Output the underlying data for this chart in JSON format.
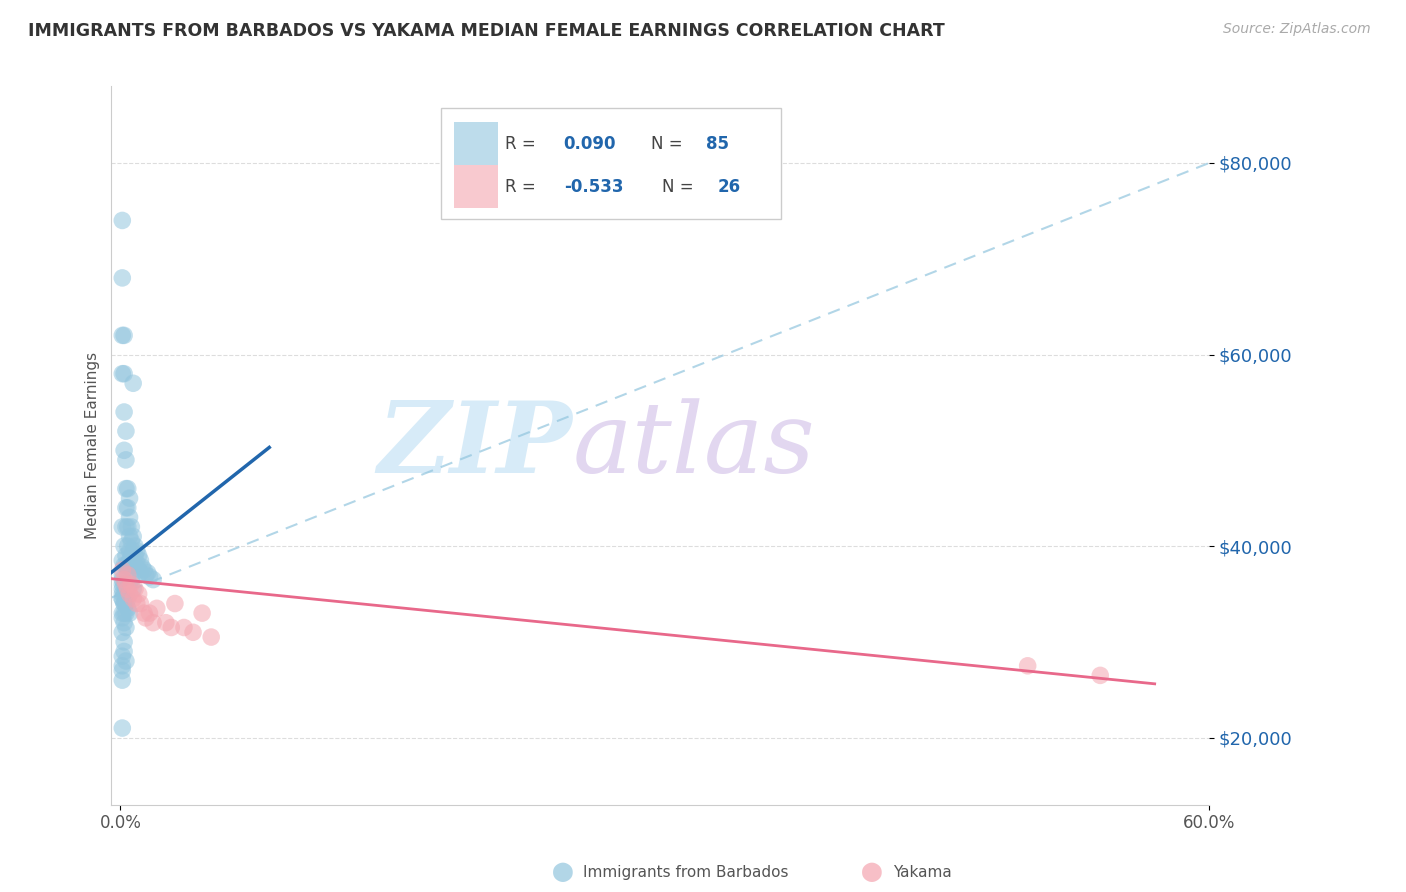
{
  "title": "IMMIGRANTS FROM BARBADOS VS YAKAMA MEDIAN FEMALE EARNINGS CORRELATION CHART",
  "source": "Source: ZipAtlas.com",
  "ylabel": "Median Female Earnings",
  "xlim": [
    -0.005,
    0.6
  ],
  "ylim": [
    13000,
    88000
  ],
  "yticks": [
    20000,
    40000,
    60000,
    80000
  ],
  "ytick_labels": [
    "$20,000",
    "$40,000",
    "$60,000",
    "$80,000"
  ],
  "legend1_R": "0.090",
  "legend1_N": "85",
  "legend2_R": "-0.533",
  "legend2_N": "26",
  "blue_scatter_color": "#92c5de",
  "pink_scatter_color": "#f4a5b0",
  "blue_line_color": "#2166ac",
  "pink_line_color": "#e8688a",
  "dash_line_color": "#92c5de",
  "blue_scatter_x": [
    0.001,
    0.001,
    0.001,
    0.001,
    0.002,
    0.002,
    0.002,
    0.002,
    0.003,
    0.003,
    0.003,
    0.003,
    0.003,
    0.004,
    0.004,
    0.004,
    0.004,
    0.005,
    0.005,
    0.005,
    0.005,
    0.005,
    0.006,
    0.006,
    0.006,
    0.007,
    0.007,
    0.007,
    0.008,
    0.008,
    0.008,
    0.009,
    0.009,
    0.01,
    0.01,
    0.011,
    0.011,
    0.012,
    0.013,
    0.014,
    0.015,
    0.016,
    0.018,
    0.002,
    0.003,
    0.004,
    0.005,
    0.006,
    0.007,
    0.001,
    0.002,
    0.003,
    0.001,
    0.002,
    0.003,
    0.004,
    0.005,
    0.001,
    0.002,
    0.001,
    0.001,
    0.002,
    0.001,
    0.001,
    0.002,
    0.003,
    0.004,
    0.002,
    0.003,
    0.001,
    0.002,
    0.003,
    0.001,
    0.001,
    0.002,
    0.002,
    0.001,
    0.003,
    0.001,
    0.001,
    0.001,
    0.001,
    0.007,
    0.001,
    0.001
  ],
  "blue_scatter_y": [
    74000,
    68000,
    62000,
    58000,
    62000,
    58000,
    54000,
    50000,
    52000,
    49000,
    46000,
    44000,
    42000,
    46000,
    44000,
    42000,
    40000,
    45000,
    43000,
    41000,
    39500,
    38500,
    42000,
    40500,
    39000,
    41000,
    39500,
    38000,
    40000,
    39000,
    38000,
    39500,
    38200,
    39000,
    37500,
    38500,
    37200,
    37800,
    37500,
    37000,
    37200,
    36800,
    36500,
    38000,
    39000,
    37000,
    36000,
    36500,
    35500,
    42000,
    40000,
    38000,
    36000,
    35000,
    34000,
    33500,
    33000,
    34500,
    33000,
    35000,
    36500,
    34000,
    37000,
    38500,
    36000,
    35500,
    34500,
    34000,
    33000,
    32500,
    32000,
    31500,
    33000,
    31000,
    30000,
    29000,
    28500,
    28000,
    27500,
    27000,
    26000,
    21000,
    57000,
    35500,
    34500
  ],
  "pink_scatter_x": [
    0.001,
    0.002,
    0.003,
    0.004,
    0.004,
    0.005,
    0.006,
    0.007,
    0.008,
    0.009,
    0.01,
    0.011,
    0.013,
    0.014,
    0.016,
    0.018,
    0.02,
    0.025,
    0.028,
    0.03,
    0.035,
    0.04,
    0.045,
    0.05,
    0.5,
    0.54
  ],
  "pink_scatter_y": [
    37500,
    36500,
    36000,
    35500,
    37000,
    35000,
    36000,
    34500,
    35500,
    34000,
    35000,
    34000,
    33000,
    32500,
    33000,
    32000,
    33500,
    32000,
    31500,
    34000,
    31500,
    31000,
    33000,
    30500,
    27500,
    26500
  ]
}
